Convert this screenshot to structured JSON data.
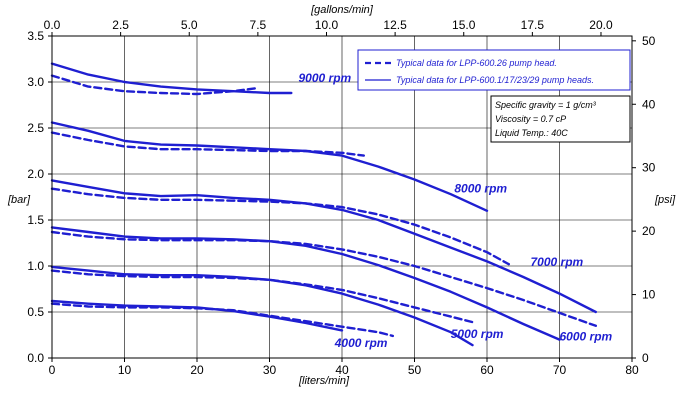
{
  "chart_data": {
    "type": "line",
    "xlabel": "[liters/min]",
    "x2label": "[gallons/min]",
    "ylabel": "[bar]",
    "y2label": "[psi]",
    "xlim": [
      0,
      80
    ],
    "ylim": [
      0,
      3.5
    ],
    "x2lim": [
      0,
      21.13
    ],
    "y2lim": [
      0,
      50.76
    ],
    "x_ticks": [
      0,
      10,
      20,
      30,
      40,
      50,
      60,
      70,
      80
    ],
    "y_ticks": [
      0.0,
      0.5,
      1.0,
      1.5,
      2.0,
      2.5,
      3.0,
      3.5
    ],
    "x2_ticks": [
      0.0,
      2.5,
      5.0,
      7.5,
      10.0,
      12.5,
      15.0,
      17.5,
      20.0
    ],
    "y2_ticks": [
      0,
      10,
      20,
      30,
      40,
      50
    ],
    "x_tick_labels": [
      "0",
      "10",
      "20",
      "30",
      "40",
      "50",
      "60",
      "70",
      "80"
    ],
    "y_tick_labels": [
      "0.0",
      "0.5",
      "1.0",
      "1.5",
      "2.0",
      "2.5",
      "3.0",
      "3.5"
    ],
    "x2_tick_labels": [
      "0.0",
      "2.5",
      "5.0",
      "7.5",
      "10.0",
      "12.5",
      "15.0",
      "17.5",
      "20.0"
    ],
    "y2_tick_labels": [
      "0",
      "10",
      "20",
      "30",
      "40",
      "50"
    ],
    "grid": true,
    "legend": {
      "placement": "top-right",
      "entries": [
        {
          "label": "Typical data for LPP-600.26 pump head.",
          "style": "dashed"
        },
        {
          "label": "Typical data for LPP-600.1/17/23/29  pump heads.",
          "style": "solid"
        }
      ]
    },
    "notes": [
      "Specific gravity = 1 g/cm³",
      "Viscosity = 0.7 cP",
      "Liquid Temp.: 40C"
    ],
    "colors": {
      "series": "#1f1fd1",
      "grid": "#000000",
      "legend_border": "#1f1fd1",
      "label": "#1f1fd1"
    },
    "series": [
      {
        "name": "9000 rpm",
        "style": "solid",
        "x": [
          0,
          5,
          10,
          15,
          20,
          25,
          30,
          33
        ],
        "y": [
          3.2,
          3.08,
          3.0,
          2.95,
          2.92,
          2.9,
          2.88,
          2.88
        ]
      },
      {
        "name": "9000 rpm",
        "style": "dashed",
        "x": [
          0,
          5,
          10,
          15,
          20,
          25,
          28
        ],
        "y": [
          3.07,
          2.95,
          2.9,
          2.88,
          2.87,
          2.9,
          2.93
        ]
      },
      {
        "name": "8000 rpm",
        "style": "solid",
        "x": [
          0,
          5,
          10,
          15,
          20,
          25,
          30,
          35,
          40,
          45,
          50,
          55,
          60
        ],
        "y": [
          2.56,
          2.47,
          2.36,
          2.32,
          2.31,
          2.29,
          2.27,
          2.25,
          2.2,
          2.08,
          1.94,
          1.78,
          1.6
        ]
      },
      {
        "name": "8000 rpm",
        "style": "dashed",
        "x": [
          0,
          5,
          10,
          15,
          20,
          25,
          30,
          35,
          40,
          43
        ],
        "y": [
          2.45,
          2.37,
          2.3,
          2.27,
          2.27,
          2.26,
          2.25,
          2.25,
          2.23,
          2.2
        ]
      },
      {
        "name": "7000 rpm",
        "style": "solid",
        "x": [
          0,
          5,
          10,
          15,
          20,
          25,
          30,
          35,
          40,
          45,
          50,
          55,
          60,
          65,
          70,
          75
        ],
        "y": [
          1.93,
          1.86,
          1.79,
          1.76,
          1.77,
          1.74,
          1.72,
          1.68,
          1.61,
          1.5,
          1.35,
          1.2,
          1.05,
          0.88,
          0.7,
          0.5
        ]
      },
      {
        "name": "7000 rpm",
        "style": "dashed",
        "x": [
          0,
          5,
          10,
          15,
          20,
          25,
          30,
          35,
          40,
          45,
          50,
          55,
          60,
          63
        ],
        "y": [
          1.84,
          1.78,
          1.74,
          1.72,
          1.72,
          1.71,
          1.7,
          1.68,
          1.64,
          1.56,
          1.45,
          1.31,
          1.15,
          1.02
        ]
      },
      {
        "name": "6000 rpm",
        "style": "solid",
        "x": [
          0,
          5,
          10,
          15,
          20,
          25,
          30,
          35,
          40,
          45,
          50,
          55,
          60,
          65,
          70
        ],
        "y": [
          1.42,
          1.37,
          1.32,
          1.3,
          1.3,
          1.29,
          1.27,
          1.22,
          1.13,
          1.01,
          0.87,
          0.72,
          0.55,
          0.37,
          0.2
        ]
      },
      {
        "name": "6000 rpm",
        "style": "dashed",
        "x": [
          0,
          5,
          10,
          15,
          20,
          25,
          30,
          35,
          40,
          45,
          50,
          55,
          60,
          65,
          70,
          75
        ],
        "y": [
          1.37,
          1.32,
          1.29,
          1.28,
          1.28,
          1.28,
          1.27,
          1.24,
          1.18,
          1.1,
          1.0,
          0.88,
          0.76,
          0.63,
          0.49,
          0.35
        ]
      },
      {
        "name": "5000 rpm",
        "style": "solid",
        "x": [
          0,
          5,
          10,
          15,
          20,
          25,
          30,
          35,
          40,
          45,
          50,
          55,
          58
        ],
        "y": [
          0.99,
          0.95,
          0.91,
          0.9,
          0.9,
          0.88,
          0.85,
          0.79,
          0.7,
          0.58,
          0.44,
          0.28,
          0.14
        ]
      },
      {
        "name": "5000 rpm",
        "style": "dashed",
        "x": [
          0,
          5,
          10,
          15,
          20,
          25,
          30,
          35,
          40,
          45,
          50,
          55,
          58
        ],
        "y": [
          0.95,
          0.91,
          0.89,
          0.88,
          0.88,
          0.87,
          0.85,
          0.8,
          0.74,
          0.65,
          0.55,
          0.45,
          0.39
        ]
      },
      {
        "name": "4000 rpm",
        "style": "solid",
        "x": [
          0,
          5,
          10,
          15,
          20,
          25,
          30,
          35,
          40
        ],
        "y": [
          0.62,
          0.59,
          0.57,
          0.56,
          0.55,
          0.51,
          0.45,
          0.38,
          0.3
        ]
      },
      {
        "name": "4000 rpm",
        "style": "dashed",
        "x": [
          0,
          5,
          10,
          15,
          20,
          25,
          30,
          35,
          40,
          45,
          47
        ],
        "y": [
          0.59,
          0.56,
          0.55,
          0.55,
          0.54,
          0.52,
          0.46,
          0.4,
          0.34,
          0.28,
          0.24
        ]
      }
    ],
    "annotations": [
      {
        "text": "9000 rpm",
        "x": 34,
        "y": 3.0
      },
      {
        "text": "8000 rpm",
        "x": 55.5,
        "y": 1.8
      },
      {
        "text": "7000 rpm",
        "x": 66,
        "y": 1.0
      },
      {
        "text": "6000 rpm",
        "x": 70,
        "y": 0.19
      },
      {
        "text": "5000 rpm",
        "x": 55,
        "y": 0.22
      },
      {
        "text": "4000 rpm",
        "x": 39,
        "y": 0.12
      }
    ]
  }
}
